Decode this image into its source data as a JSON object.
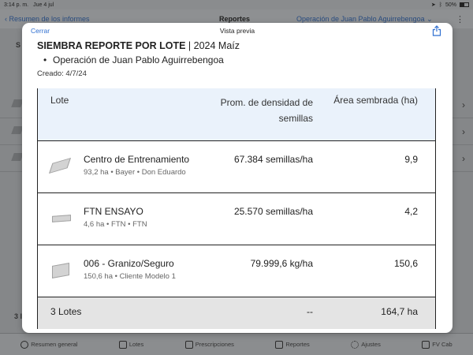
{
  "status_bar": {
    "time": "3:14 p. m.",
    "date": "Jue 4 jul",
    "battery": "50%"
  },
  "background_nav": {
    "back_label": "Resumen de los informes",
    "title": "Reportes",
    "operation": "Operación de Juan Pablo Aguirrebengoa"
  },
  "background_left": {
    "letter_top": "S",
    "letter_bottom": "3 l"
  },
  "modal": {
    "close_label": "Cerrar",
    "title": "Vista previa"
  },
  "report": {
    "title_bold": "SIEMBRA REPORTE POR LOTE",
    "title_rest": " | 2024 Maíz",
    "operation": "Operación de Juan Pablo Aguirrebengoa",
    "created": "Creado: 4/7/24"
  },
  "table": {
    "headers": {
      "lote": "Lote",
      "density_line1": "Prom. de densidad de",
      "density_line2": "semillas",
      "area": "Área sembrada (ha)"
    },
    "rows": [
      {
        "name": "Centro de Entrenamiento",
        "sub": "93,2 ha • Bayer • Don Eduardo",
        "density": "67.384 semillas/ha",
        "area": "9,9"
      },
      {
        "name": "FTN ENSAYO",
        "sub": "4,6 ha • FTN • FTN",
        "density": "25.570 semillas/ha",
        "area": "4,2"
      },
      {
        "name": "006 - Granizo/Seguro",
        "sub": "150,6 ha • Cliente Modelo 1",
        "density": "79.999,6 kg/ha",
        "area": "150,6"
      }
    ],
    "footer": {
      "lotes": "3 Lotes",
      "density": "--",
      "area": "164,7 ha"
    }
  },
  "tab_bar": {
    "items": [
      {
        "label": "Resumen general",
        "icon": "circle-icon"
      },
      {
        "label": "Lotes",
        "icon": "book-icon"
      },
      {
        "label": "Prescripciones",
        "icon": "grid-icon"
      },
      {
        "label": "Reportes",
        "icon": "document-icon"
      },
      {
        "label": "Ajustes",
        "icon": "gear-icon"
      },
      {
        "label": "FV Cab",
        "icon": "tractor-icon"
      }
    ]
  }
}
